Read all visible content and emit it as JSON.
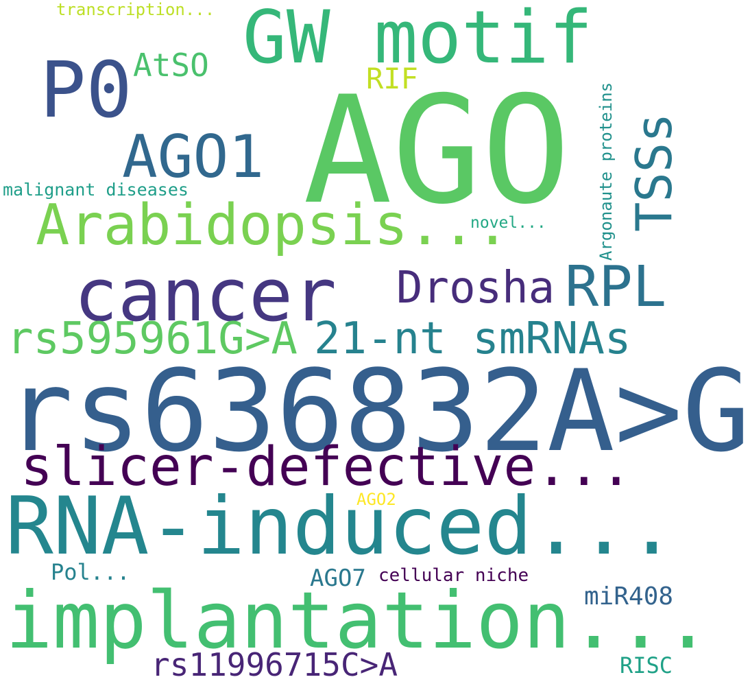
{
  "words": [
    {
      "id": "ago",
      "text": "AGO",
      "color": "#5ac864"
    },
    {
      "id": "rs636832",
      "text": "rs636832A>G",
      "color": "#355f8d"
    },
    {
      "id": "rna-induced",
      "text": "RNA-induced...",
      "color": "#24868e"
    },
    {
      "id": "implantation",
      "text": "implantation...",
      "color": "#43bf71"
    },
    {
      "id": "gw-motif",
      "text": "GW motif",
      "color": "#35b779"
    },
    {
      "id": "cancer",
      "text": "cancer",
      "color": "#453781"
    },
    {
      "id": "slicer-defective",
      "text": "slicer-defective...",
      "color": "#440154"
    },
    {
      "id": "arabidopsis",
      "text": "Arabidopsis...",
      "color": "#7ad151"
    },
    {
      "id": "p0",
      "text": "P0",
      "color": "#3b528b"
    },
    {
      "id": "ago1",
      "text": "AGO1",
      "color": "#31688e"
    },
    {
      "id": "rpl",
      "text": "RPL",
      "color": "#2c728e"
    },
    {
      "id": "21nt",
      "text": "21-nt smRNAs",
      "color": "#26828e"
    },
    {
      "id": "rs595961",
      "text": "rs595961G>A",
      "color": "#5ec962"
    },
    {
      "id": "drosha",
      "text": "Drosha",
      "color": "#472d7b"
    },
    {
      "id": "tsss",
      "text": "TSSs",
      "color": "#2a788e"
    },
    {
      "id": "rs11996715",
      "text": "rs11996715C>A",
      "color": "#482576"
    },
    {
      "id": "atso",
      "text": "AtSO",
      "color": "#4ac16d"
    },
    {
      "id": "rif",
      "text": "RIF",
      "color": "#c2df23"
    },
    {
      "id": "mir408",
      "text": "miR408",
      "color": "#33638d"
    },
    {
      "id": "ago7",
      "text": "AGO7",
      "color": "#2a788e"
    },
    {
      "id": "pol",
      "text": "Pol...",
      "color": "#26828e"
    },
    {
      "id": "cellular-niche",
      "text": "cellular niche",
      "color": "#440154"
    },
    {
      "id": "risc",
      "text": "RISC",
      "color": "#1fa187"
    },
    {
      "id": "argonaute",
      "text": "Argonaute proteins",
      "color": "#21918c"
    },
    {
      "id": "malignant",
      "text": "malignant diseases",
      "color": "#1f9e89"
    },
    {
      "id": "novel",
      "text": "novel...",
      "color": "#22a884"
    },
    {
      "id": "transcription",
      "text": "transcription...",
      "color": "#bddf26"
    },
    {
      "id": "ago2",
      "text": "AGO2",
      "color": "#fde725"
    }
  ]
}
